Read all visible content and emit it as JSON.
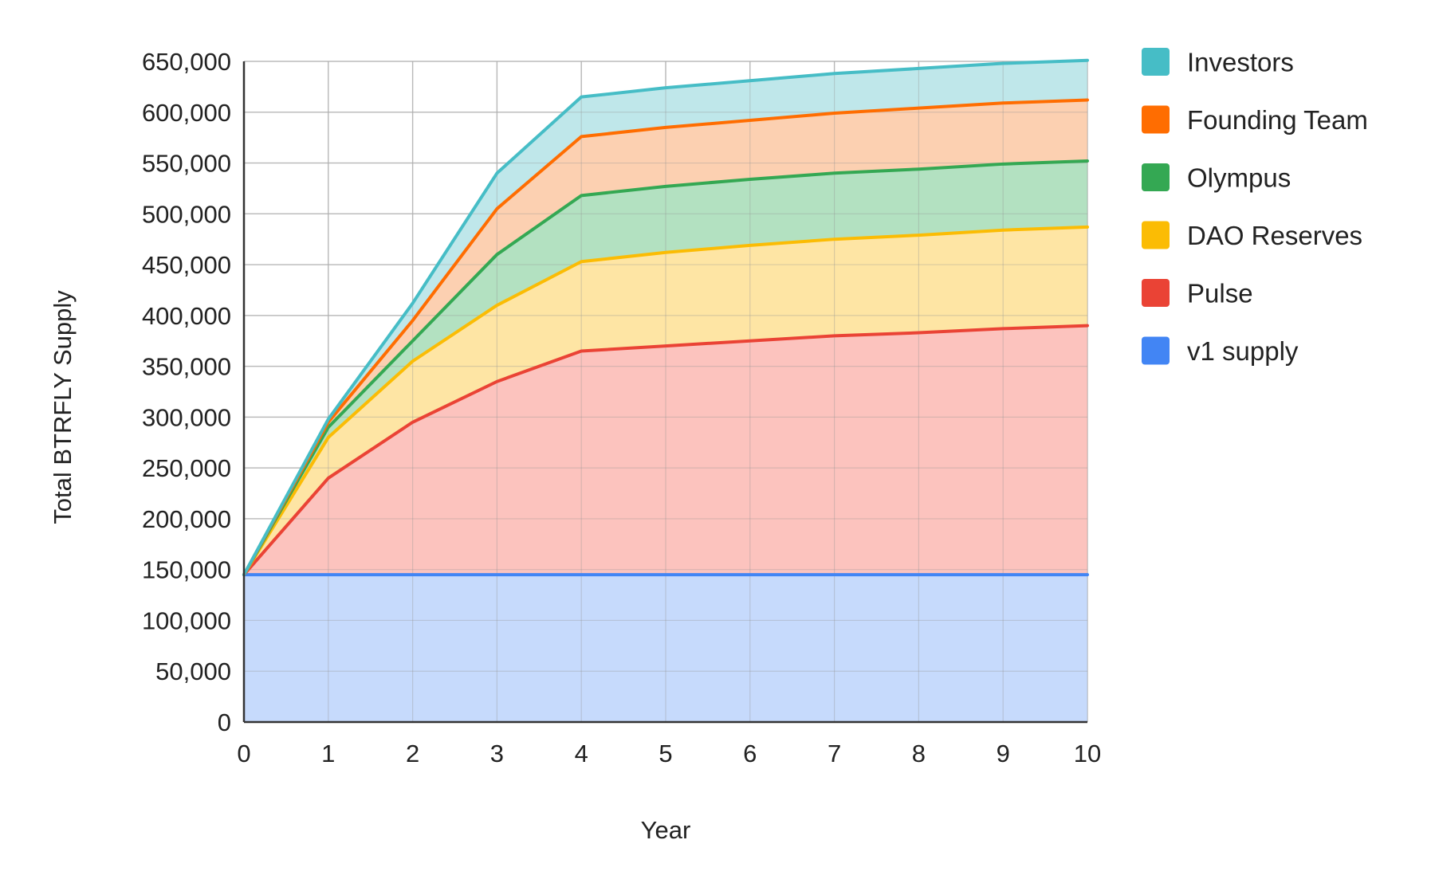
{
  "chart_data": {
    "type": "area",
    "stacked": true,
    "title": "",
    "xlabel": "Year",
    "ylabel": "Total BTRFLY Supply",
    "x": [
      0,
      1,
      2,
      3,
      4,
      5,
      6,
      7,
      8,
      9,
      10
    ],
    "x_tick_labels": [
      "0",
      "1",
      "2",
      "3",
      "4",
      "5",
      "6",
      "7",
      "8",
      "9",
      "10"
    ],
    "y_tick_labels": [
      "0",
      "50,000",
      "100,000",
      "150,000",
      "200,000",
      "250,000",
      "300,000",
      "350,000",
      "400,000",
      "450,000",
      "500,000",
      "550,000",
      "600,000",
      "650,000"
    ],
    "xlim": [
      0,
      10
    ],
    "ylim": [
      0,
      650000
    ],
    "grid": true,
    "legend_position": "right",
    "series": [
      {
        "name": "v1 supply",
        "color": "#4285f4",
        "fill": "#c6dafc",
        "values": [
          145000,
          145000,
          145000,
          145000,
          145000,
          145000,
          145000,
          145000,
          145000,
          145000,
          145000
        ]
      },
      {
        "name": "Pulse",
        "color": "#ea4335",
        "fill": "#fcc3be",
        "values": [
          0,
          95000,
          150000,
          190000,
          220000,
          225000,
          230000,
          235000,
          238000,
          242000,
          245000
        ]
      },
      {
        "name": "DAO Reserves",
        "color": "#fbbc04",
        "fill": "#fee5a4",
        "values": [
          0,
          40000,
          60000,
          75000,
          88000,
          92000,
          94000,
          95000,
          96000,
          97000,
          97000
        ]
      },
      {
        "name": "Olympus",
        "color": "#34a853",
        "fill": "#b3e1c1",
        "values": [
          0,
          10000,
          20000,
          50000,
          65000,
          65000,
          65000,
          65000,
          65000,
          65000,
          65000
        ]
      },
      {
        "name": "Founding Team",
        "color": "#ff6d01",
        "fill": "#fcd0b1",
        "values": [
          0,
          5000,
          20000,
          45000,
          58000,
          58000,
          58000,
          59000,
          60000,
          60000,
          60000
        ]
      },
      {
        "name": "Investors",
        "color": "#46bdc6",
        "fill": "#bfe7ea",
        "values": [
          0,
          3000,
          17000,
          35000,
          39000,
          39000,
          39000,
          39000,
          39000,
          39000,
          39000
        ]
      }
    ],
    "legend_order": [
      "Investors",
      "Founding Team",
      "Olympus",
      "DAO Reserves",
      "Pulse",
      "v1 supply"
    ]
  }
}
